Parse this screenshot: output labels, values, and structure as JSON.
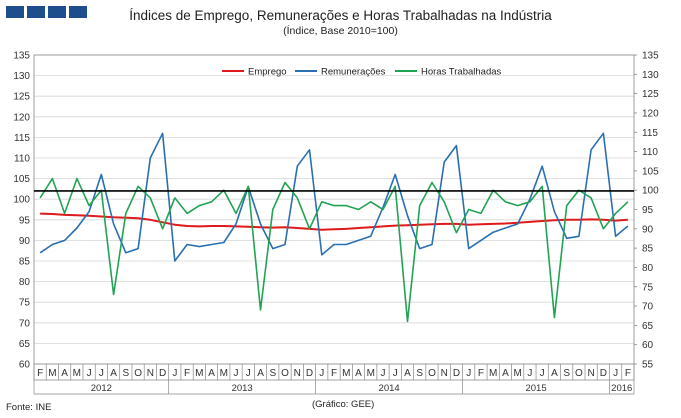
{
  "header": {
    "title": "Índices de Emprego, Remunerações e Horas Trabalhadas na Indústria",
    "subtitle": "(Índice, Base 2010=100)"
  },
  "footer": {
    "source": "Fonte: INE",
    "credit": "(Gráfico: GEE)"
  },
  "colors": {
    "logo": "#1f4e8c",
    "emprego": "#e0191a",
    "remuneracoes": "#2a6fb1",
    "horas": "#22a354",
    "reference": "#000000",
    "grid": "#d6d6d6"
  },
  "chart_data": {
    "type": "line",
    "title": "Índices de Emprego, Remunerações e Horas Trabalhadas na Indústria",
    "subtitle": "(Índice, Base 2010=100)",
    "xlabel": "",
    "ylabel": "",
    "grid": true,
    "legend_position": "top",
    "y_left": {
      "min": 60,
      "max": 135,
      "step": 5,
      "ticks": [
        60,
        65,
        70,
        75,
        80,
        85,
        90,
        95,
        100,
        105,
        110,
        115,
        120,
        125,
        130,
        135
      ]
    },
    "y_right": {
      "min": 55,
      "max": 135,
      "step": 5,
      "ticks": [
        55,
        60,
        65,
        70,
        75,
        80,
        85,
        90,
        95,
        100,
        105,
        110,
        115,
        120,
        125,
        130,
        135
      ]
    },
    "reference_line": {
      "y": 102,
      "axis": "left"
    },
    "month_labels": [
      "F",
      "M",
      "A",
      "M",
      "J",
      "J",
      "A",
      "S",
      "O",
      "N",
      "D",
      "J",
      "F",
      "M",
      "A",
      "M",
      "J",
      "J",
      "A",
      "S",
      "O",
      "N",
      "D",
      "J",
      "F",
      "M",
      "A",
      "M",
      "J",
      "J",
      "A",
      "S",
      "O",
      "N",
      "D",
      "J",
      "F",
      "M",
      "A",
      "M",
      "J",
      "J",
      "A",
      "S",
      "O",
      "N",
      "D",
      "J",
      "F"
    ],
    "years": [
      {
        "label": "2012",
        "start": 0,
        "end": 10
      },
      {
        "label": "2013",
        "start": 11,
        "end": 22
      },
      {
        "label": "2014",
        "start": 23,
        "end": 34
      },
      {
        "label": "2015",
        "start": 35,
        "end": 46
      },
      {
        "label": "2016",
        "start": 47,
        "end": 48
      }
    ],
    "series": [
      {
        "name": "Emprego",
        "axis": "left",
        "color": "#e0191a",
        "values": [
          96.5,
          96.4,
          96.2,
          96.1,
          96.0,
          95.8,
          95.6,
          95.5,
          95.4,
          95.0,
          94.4,
          93.8,
          93.5,
          93.4,
          93.5,
          93.5,
          93.4,
          93.3,
          93.2,
          93.1,
          93.2,
          93.0,
          92.8,
          92.6,
          92.7,
          92.8,
          93.0,
          93.2,
          93.4,
          93.6,
          93.7,
          93.8,
          93.9,
          94.0,
          94.0,
          93.8,
          93.9,
          94.0,
          94.1,
          94.3,
          94.5,
          94.7,
          94.9,
          95.0,
          95.0,
          95.1,
          95.0,
          94.8,
          95.0
        ]
      },
      {
        "name": "Remunerações",
        "axis": "left",
        "color": "#2a6fb1",
        "values": [
          87,
          89,
          90,
          93,
          97,
          106,
          94,
          87,
          88,
          110,
          116,
          85,
          89,
          88.5,
          89,
          89.5,
          94,
          103,
          94,
          88,
          89,
          108,
          112,
          86.5,
          89,
          89,
          90,
          91,
          98,
          106,
          96,
          88,
          89,
          109,
          113,
          88,
          90,
          92,
          93,
          94,
          100,
          108,
          97,
          90.5,
          91,
          112,
          116,
          91,
          93.5
        ]
      },
      {
        "name": "Horas Trabalhadas",
        "axis": "right",
        "color": "#22a354",
        "values": [
          98,
          103,
          94,
          103,
          96,
          100,
          73,
          94,
          101,
          98,
          90,
          98,
          94,
          96,
          97,
          100,
          94,
          101,
          69,
          95,
          102,
          98,
          90,
          97,
          96,
          96,
          95,
          97,
          95,
          101,
          66,
          96,
          102,
          97,
          89,
          95,
          94,
          100,
          97,
          96,
          97,
          101,
          67,
          96,
          100,
          98,
          90,
          94,
          97
        ]
      }
    ]
  }
}
